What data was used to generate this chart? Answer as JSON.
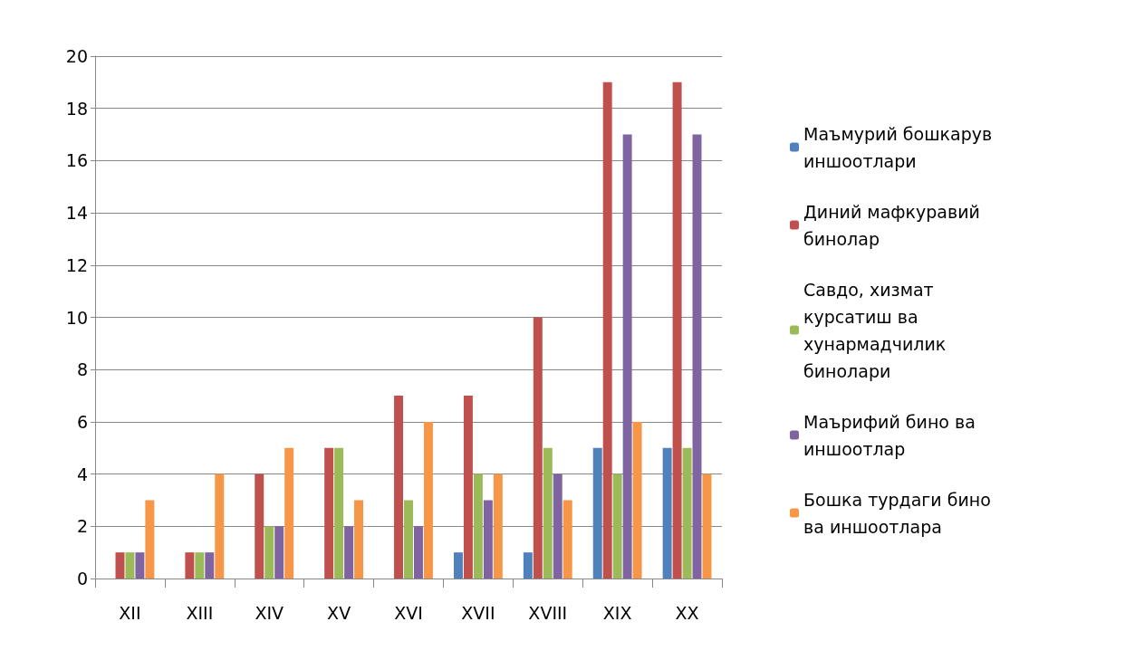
{
  "chart_data": {
    "type": "bar",
    "categories": [
      "XII",
      "XIII",
      "XIV",
      "XV",
      "XVI",
      "XVII",
      "XVIII",
      "XIX",
      "XX"
    ],
    "series": [
      {
        "name": "Маъмурий бошкарув иншоотлари",
        "color": "#4f81bd",
        "values": [
          0,
          0,
          0,
          0,
          0,
          1,
          1,
          5,
          5
        ]
      },
      {
        "name": "Диний мафкуравий бинолар",
        "color": "#c0504d",
        "values": [
          1,
          1,
          4,
          5,
          7,
          7,
          10,
          19,
          19
        ]
      },
      {
        "name": "Савдо, хизмат курсатиш ва хунармадчилик бинолари",
        "color": "#9bbb59",
        "values": [
          1,
          1,
          2,
          5,
          3,
          4,
          5,
          4,
          5
        ]
      },
      {
        "name": "Маърифий бино ва иншоотлар",
        "color": "#8064a2",
        "values": [
          1,
          1,
          2,
          2,
          2,
          3,
          4,
          17,
          17
        ]
      },
      {
        "name": "Бошка турдаги бино ва иншоотлара",
        "color": "#f79646",
        "values": [
          3,
          4,
          5,
          3,
          6,
          4,
          3,
          6,
          4
        ]
      }
    ],
    "ylim": [
      0,
      20
    ],
    "yticks": [
      0,
      2,
      4,
      6,
      8,
      10,
      12,
      14,
      16,
      18,
      20
    ],
    "grid": "y",
    "legend": "right"
  }
}
